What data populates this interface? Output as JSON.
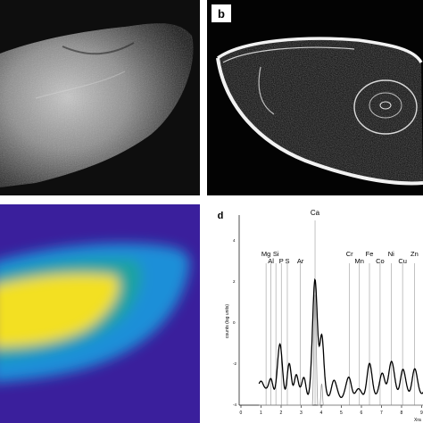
{
  "panels": {
    "a": {
      "label": ""
    },
    "b": {
      "label": "b"
    },
    "c": {
      "label": ""
    },
    "d": {
      "label": "d"
    }
  },
  "colors": {
    "background": "#ffffff",
    "heatmap_low": "#3a1f9c",
    "heatmap_mid": "#1fa3a0",
    "heatmap_high": "#f3e020",
    "spectrum_line": "#000000",
    "marker_line": "#9a9a9a"
  },
  "spectrum": {
    "y_axis_label": "counts (log units)",
    "x_axis_label_fragment": "Xra",
    "y_tick_labels": [
      "4",
      "2",
      "0",
      "-2",
      "-4"
    ],
    "x_tick_labels": [
      "0",
      "1",
      "2",
      "3",
      "4",
      "5",
      "6",
      "7",
      "8",
      "9"
    ],
    "element_labels": [
      {
        "symbol": "Mg",
        "energy": 1.25
      },
      {
        "symbol": "Al",
        "energy": 1.49
      },
      {
        "symbol": "Si",
        "energy": 1.74
      },
      {
        "symbol": "S",
        "energy": 2.31
      },
      {
        "symbol": "P",
        "energy": 2.01
      },
      {
        "symbol": "Ar",
        "energy": 2.96
      },
      {
        "symbol": "Ca",
        "energy": 3.69
      },
      {
        "symbol": "Cr",
        "energy": 5.41
      },
      {
        "symbol": "Mn",
        "energy": 5.9
      },
      {
        "symbol": "Fe",
        "energy": 6.4
      },
      {
        "symbol": "Co",
        "energy": 6.93
      },
      {
        "symbol": "Ni",
        "energy": 7.48
      },
      {
        "symbol": "Cu",
        "energy": 8.05
      },
      {
        "symbol": "Zn",
        "energy": 8.64
      }
    ]
  }
}
